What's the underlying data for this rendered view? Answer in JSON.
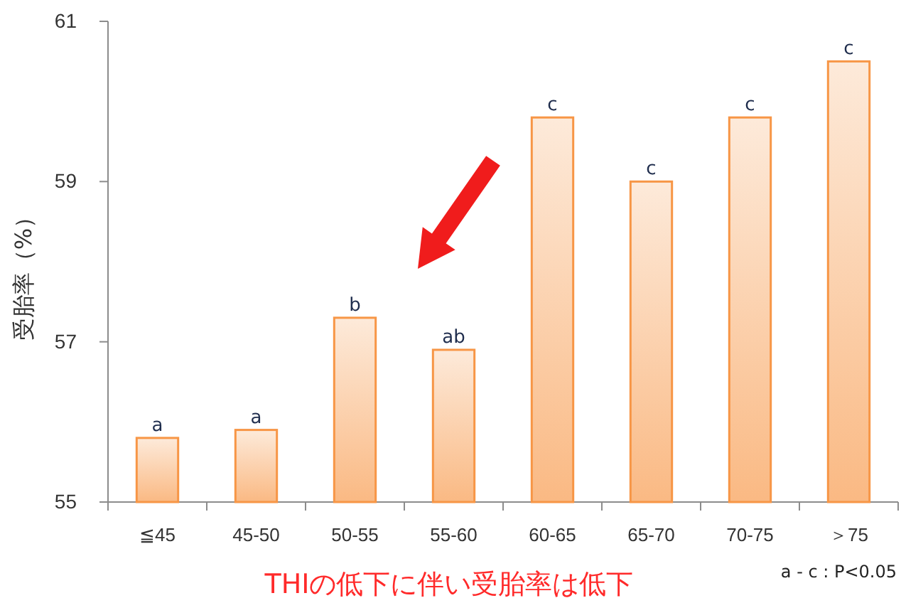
{
  "chart_data": {
    "type": "bar",
    "ylabel": "受胎率（%）",
    "categories": [
      "≦45",
      "45-50",
      "50-55",
      "55-60",
      "60-65",
      "65-70",
      "70-75",
      "＞75"
    ],
    "values": [
      55.8,
      55.9,
      57.3,
      56.9,
      59.8,
      59.0,
      59.8,
      60.5
    ],
    "color": "#f79646",
    "ylim": [
      55,
      61
    ],
    "yticks": [
      55,
      57,
      59,
      61
    ],
    "grid": false,
    "annotations": [
      {
        "text": "a",
        "x": "≦45",
        "y": 55.8
      },
      {
        "text": "a",
        "x": "45-50",
        "y": 55.9
      },
      {
        "text": "b",
        "x": "50-55",
        "y": 57.3
      },
      {
        "text": "ab",
        "x": "55-60",
        "y": 56.9
      },
      {
        "text": "c",
        "x": "60-65",
        "y": 59.8
      },
      {
        "text": "c",
        "x": "65-70",
        "y": 59.0
      },
      {
        "text": "c",
        "x": "70-75",
        "y": 59.8
      },
      {
        "text": "c",
        "x": "＞75",
        "y": 60.5
      },
      "THIの低下に伴い受胎率は低下",
      "a - c : P<0.05"
    ]
  }
}
